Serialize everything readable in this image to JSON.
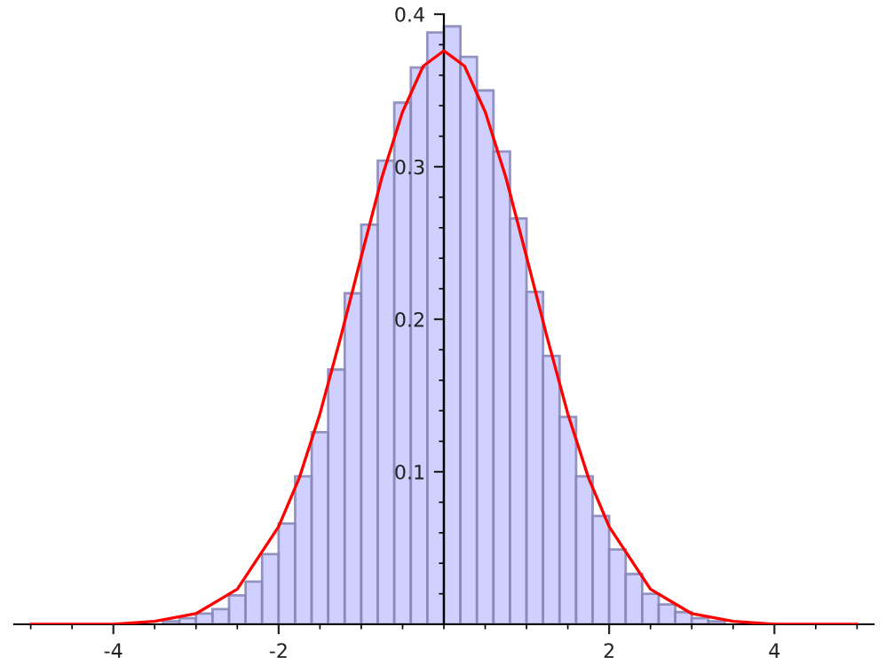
{
  "chart_data": {
    "type": "histogram",
    "series": [
      {
        "color": "#ccccff",
        "bins": [
          -3.6,
          -3.4,
          -3.2,
          -3.0,
          -2.8,
          -2.6,
          -2.4,
          -2.2,
          -2.0,
          -1.8,
          -1.6,
          -1.4,
          -1.2,
          -1.0,
          -0.8,
          -0.6,
          -0.4,
          -0.2,
          0.0,
          0.2,
          0.4,
          0.6,
          0.8,
          1.0,
          1.2,
          1.4,
          1.6,
          1.8,
          2.0,
          2.2,
          2.4,
          2.6,
          2.8,
          3.0,
          3.2,
          3.4,
          3.6
        ],
        "values": [
          null,
          0.002,
          0.004,
          0.007,
          0.01,
          0.019,
          0.028,
          0.046,
          0.066,
          0.097,
          0.126,
          0.167,
          0.217,
          0.262,
          0.304,
          0.342,
          0.365,
          0.388,
          0.392,
          0.372,
          0.35,
          0.31,
          0.266,
          0.218,
          0.176,
          0.136,
          0.097,
          0.071,
          0.049,
          0.033,
          0.02,
          0.013,
          0.008,
          0.004,
          0.002,
          null
        ]
      },
      {
        "type": "line",
        "color": "#ff0000",
        "x": [
          -5,
          -4.5,
          -4,
          -3.5,
          -3,
          -2.5,
          -2,
          -1.75,
          -1.5,
          -1.25,
          -1,
          -0.75,
          -0.5,
          -0.25,
          0,
          0.25,
          0.5,
          0.75,
          1,
          1.25,
          1.5,
          1.75,
          2,
          2.5,
          3,
          3.5,
          4,
          4.5,
          5
        ],
        "values": [
          0.0,
          0.0,
          0.0,
          0.002,
          0.007,
          0.023,
          0.064,
          0.096,
          0.138,
          0.188,
          0.241,
          0.293,
          0.336,
          0.366,
          0.376,
          0.366,
          0.336,
          0.293,
          0.241,
          0.188,
          0.138,
          0.096,
          0.064,
          0.023,
          0.007,
          0.002,
          0.0,
          0.0,
          0.0
        ]
      }
    ],
    "xlim": [
      -5.2,
      5.2
    ],
    "ylim": [
      0,
      0.4
    ],
    "xticks": [
      -4,
      -2,
      2,
      4
    ],
    "yticks": [
      0.1,
      0.2,
      0.3,
      0.4
    ],
    "grid": false,
    "legend": false
  }
}
